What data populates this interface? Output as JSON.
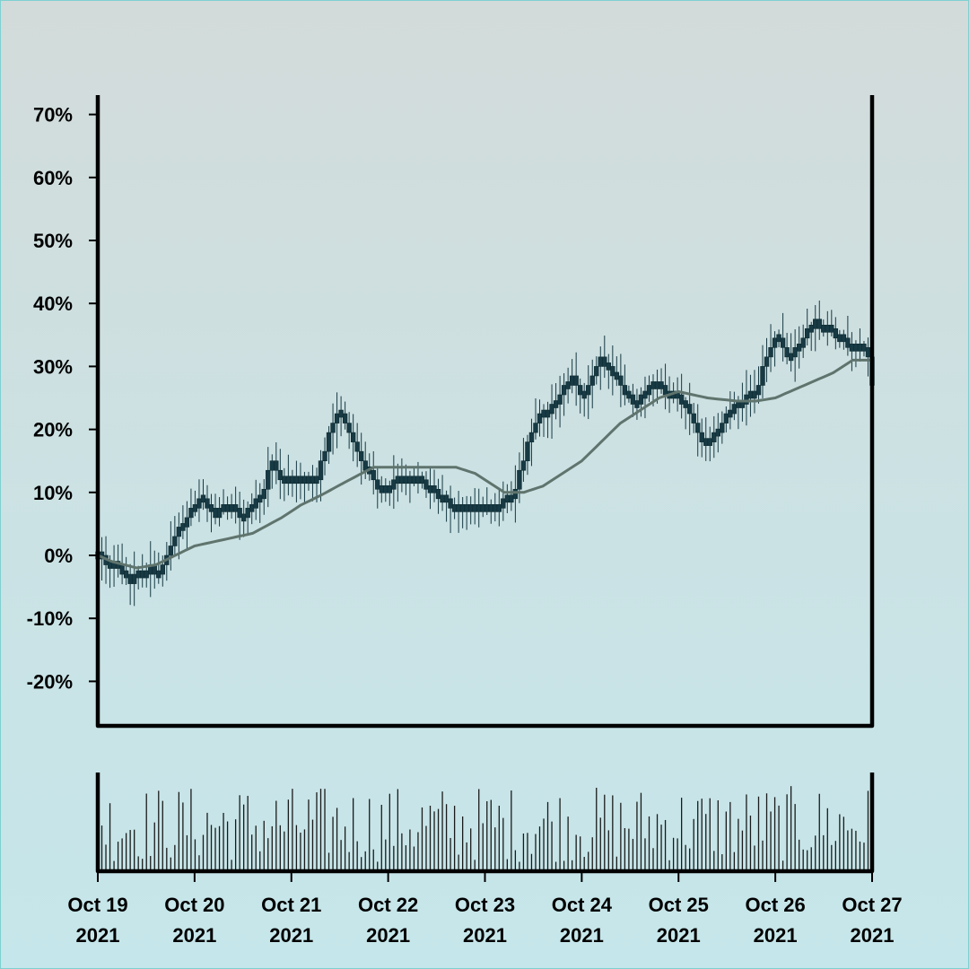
{
  "colors": {
    "background_top": "#d3dbda",
    "background_bottom": "#c5e6ea",
    "candle": "#173a44",
    "moving_average": "#5f746d",
    "volume": "#1a1a1a",
    "axis": "#000000"
  },
  "chart_data": [
    {
      "type": "candlestick",
      "title": "",
      "xlabel": "",
      "ylabel": "",
      "y_unit": "%",
      "ylim": [
        -27,
        73
      ],
      "y_ticks": [
        "70%",
        "60%",
        "50%",
        "40%",
        "30%",
        "20%",
        "10%",
        "0%",
        "-10%",
        "-20%"
      ],
      "x_range": [
        "2021-10-19",
        "2021-10-27"
      ],
      "grid": false,
      "legend": "none",
      "series": [
        {
          "kind": "close_path",
          "points": [
            [
              0,
              0
            ],
            [
              0.2,
              -2
            ],
            [
              0.35,
              -4
            ],
            [
              0.55,
              -2
            ],
            [
              0.65,
              -3
            ],
            [
              0.8,
              3
            ],
            [
              1.0,
              8
            ],
            [
              1.1,
              9
            ],
            [
              1.2,
              6
            ],
            [
              1.35,
              8
            ],
            [
              1.5,
              6
            ],
            [
              1.7,
              10
            ],
            [
              1.8,
              15
            ],
            [
              1.9,
              12
            ],
            [
              2.0,
              12
            ],
            [
              2.25,
              12
            ],
            [
              2.4,
              20
            ],
            [
              2.5,
              23
            ],
            [
              2.7,
              16
            ],
            [
              2.9,
              10
            ],
            [
              3.1,
              12
            ],
            [
              3.3,
              12
            ],
            [
              3.5,
              10
            ],
            [
              3.7,
              7
            ],
            [
              3.9,
              7
            ],
            [
              4.1,
              7
            ],
            [
              4.3,
              10
            ],
            [
              4.5,
              21
            ],
            [
              4.7,
              24
            ],
            [
              4.9,
              28
            ],
            [
              5.0,
              25
            ],
            [
              5.2,
              31
            ],
            [
              5.35,
              28
            ],
            [
              5.55,
              24
            ],
            [
              5.7,
              27
            ],
            [
              5.9,
              26
            ],
            [
              6.0,
              25
            ],
            [
              6.1,
              23
            ],
            [
              6.25,
              17
            ],
            [
              6.45,
              21
            ],
            [
              6.6,
              24
            ],
            [
              6.8,
              26
            ],
            [
              6.9,
              31
            ],
            [
              7.0,
              35
            ],
            [
              7.15,
              31
            ],
            [
              7.4,
              37
            ],
            [
              7.55,
              36
            ],
            [
              7.65,
              34
            ],
            [
              7.95,
              33
            ],
            [
              8.0,
              27
            ]
          ]
        },
        {
          "kind": "moving_average",
          "points": [
            [
              0,
              0
            ],
            [
              0.15,
              -1
            ],
            [
              0.4,
              -2
            ],
            [
              0.6,
              -1.5
            ],
            [
              0.8,
              0
            ],
            [
              1.0,
              1.5
            ],
            [
              1.3,
              2.5
            ],
            [
              1.6,
              3.5
            ],
            [
              1.9,
              6
            ],
            [
              2.1,
              8
            ],
            [
              2.3,
              9.5
            ],
            [
              2.6,
              12
            ],
            [
              2.85,
              14
            ],
            [
              3.1,
              14
            ],
            [
              3.4,
              14
            ],
            [
              3.7,
              14
            ],
            [
              3.9,
              13
            ],
            [
              4.2,
              10
            ],
            [
              4.4,
              10
            ],
            [
              4.6,
              11
            ],
            [
              4.8,
              13
            ],
            [
              5.0,
              15
            ],
            [
              5.2,
              18
            ],
            [
              5.4,
              21
            ],
            [
              5.6,
              23
            ],
            [
              5.8,
              25
            ],
            [
              6.0,
              26
            ],
            [
              6.3,
              25
            ],
            [
              6.6,
              24.5
            ],
            [
              6.8,
              24.5
            ],
            [
              7.0,
              25
            ],
            [
              7.3,
              27
            ],
            [
              7.6,
              29
            ],
            [
              7.8,
              31
            ],
            [
              8.0,
              31
            ]
          ]
        }
      ]
    },
    {
      "type": "bar",
      "name": "volume",
      "x_ticks": [
        {
          "line1": "Oct 19",
          "line2": "2021"
        },
        {
          "line1": "Oct 20",
          "line2": "2021"
        },
        {
          "line1": "Oct 21",
          "line2": "2021"
        },
        {
          "line1": "Oct 22",
          "line2": "2021"
        },
        {
          "line1": "Oct 23",
          "line2": "2021"
        },
        {
          "line1": "Oct 24",
          "line2": "2021"
        },
        {
          "line1": "Oct 25",
          "line2": "2021"
        },
        {
          "line1": "Oct 26",
          "line2": "2021"
        },
        {
          "line1": "Oct 27",
          "line2": "2021"
        }
      ]
    }
  ]
}
